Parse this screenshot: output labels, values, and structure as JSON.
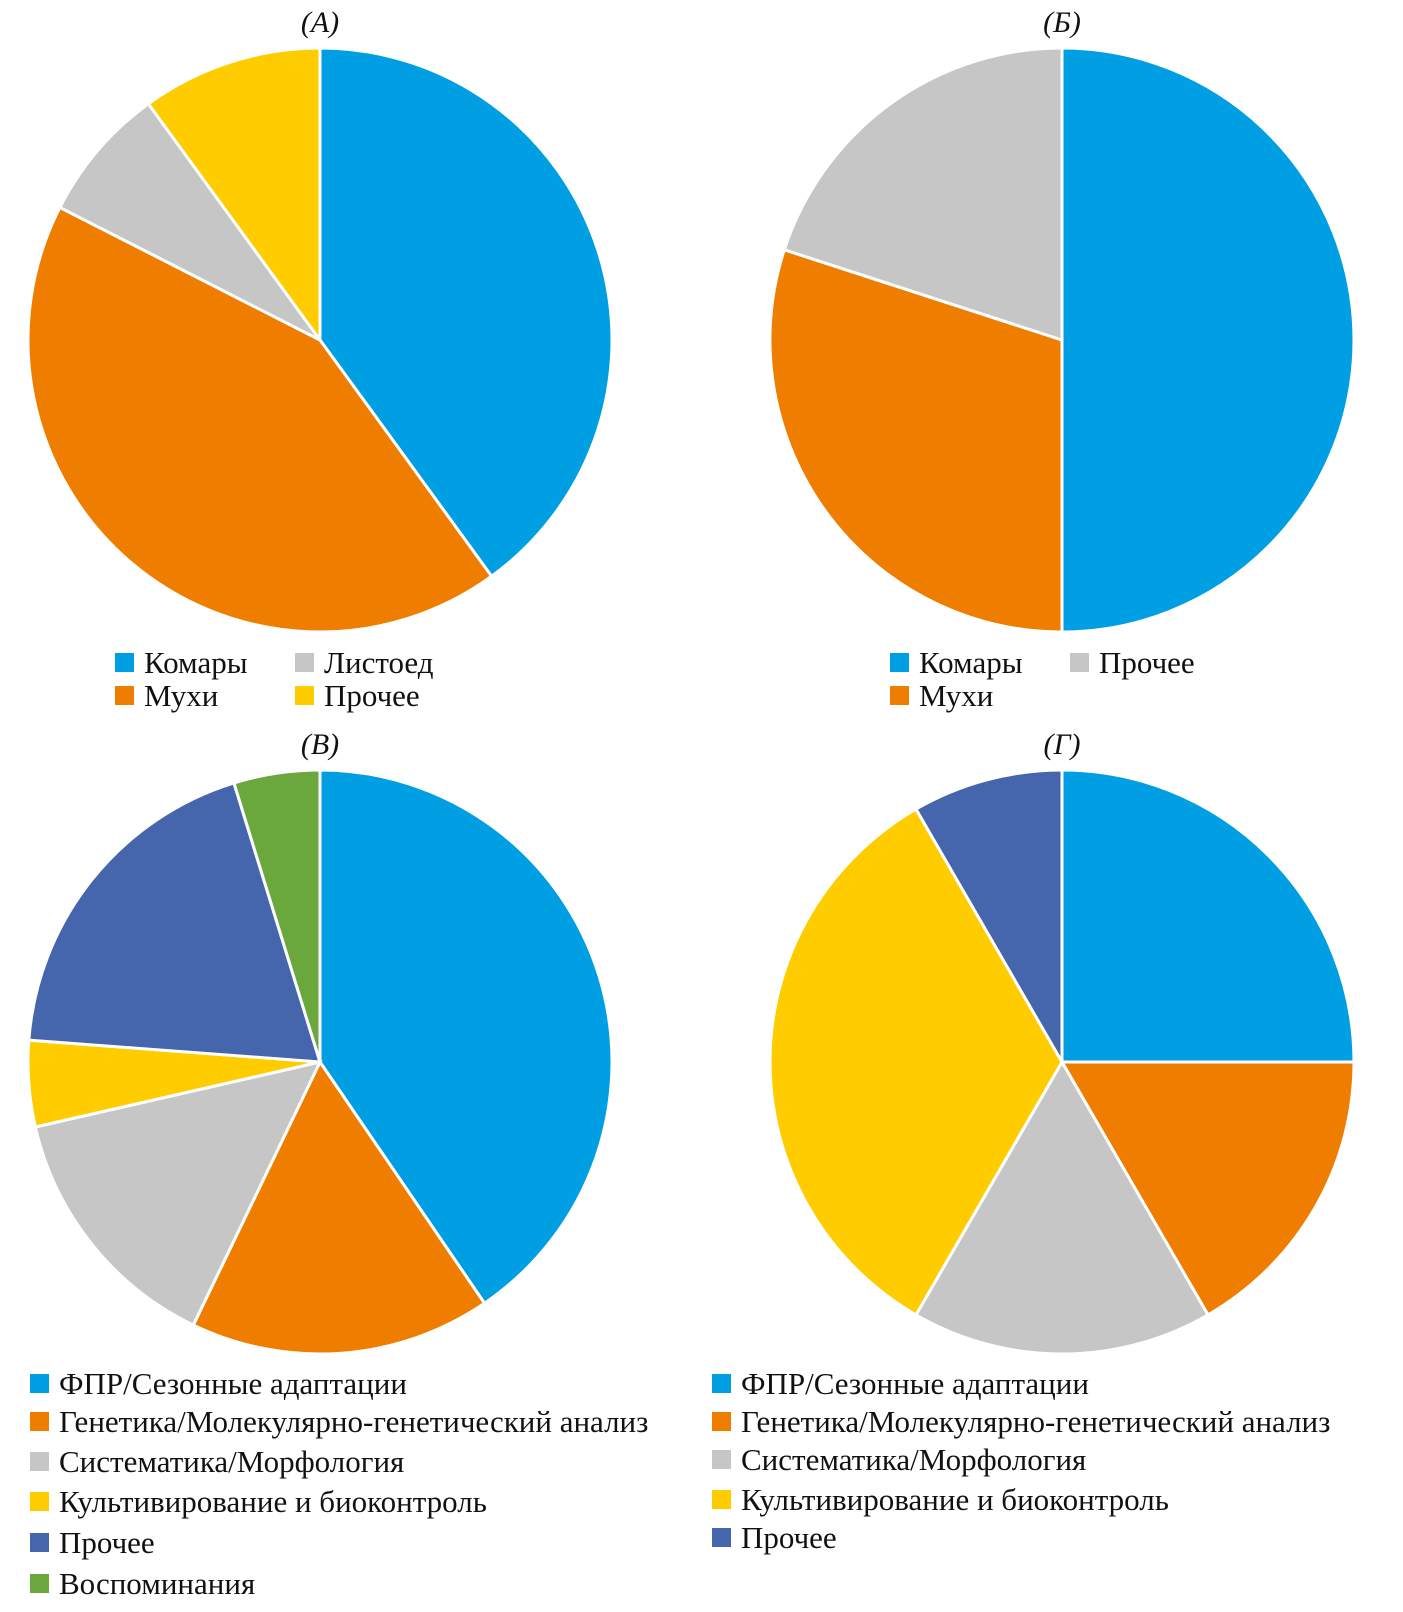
{
  "chart_data": [
    {
      "type": "pie",
      "title": "(А)",
      "categories": [
        "Комары",
        "Мухи",
        "Листоед",
        "Прочее"
      ],
      "values": [
        16,
        17,
        3,
        4
      ],
      "colors": [
        "#009fe3",
        "#ef7d00",
        "#c6c6c6",
        "#ffcc00"
      ],
      "legend_order": [
        0,
        2,
        1,
        3
      ],
      "legend": "bottom"
    },
    {
      "type": "pie",
      "title": "(Б)",
      "categories": [
        "Комары",
        "Мухи",
        "Прочее"
      ],
      "values": [
        5,
        3,
        2
      ],
      "colors": [
        "#009fe3",
        "#ef7d00",
        "#c6c6c6"
      ],
      "legend_order": [
        0,
        2,
        1
      ],
      "legend": "bottom"
    },
    {
      "type": "pie",
      "title": "(В)",
      "categories": [
        "ФПР/Сезонные адаптации",
        "Генетика/Молекулярно-генетический анализ",
        "Систематика/Морфология",
        "Культивирование и биоконтроль",
        "Прочее",
        "Воспоминания"
      ],
      "values": [
        17,
        7,
        6,
        2,
        8,
        2
      ],
      "colors": [
        "#009fe3",
        "#ef7d00",
        "#c6c6c6",
        "#ffcc00",
        "#4565ad",
        "#6aa83d"
      ],
      "legend": "bottom"
    },
    {
      "type": "pie",
      "title": "(Г)",
      "categories": [
        "ФПР/Сезонные адаптации",
        "Генетика/Молекулярно-генетический анализ",
        "Систематика/Морфология",
        "Культивирование и биоконтроль",
        "Прочее"
      ],
      "values": [
        3,
        2,
        2,
        4,
        1
      ],
      "colors": [
        "#009fe3",
        "#ef7d00",
        "#c6c6c6",
        "#ffcc00",
        "#4565ad"
      ],
      "legend": "bottom"
    }
  ]
}
